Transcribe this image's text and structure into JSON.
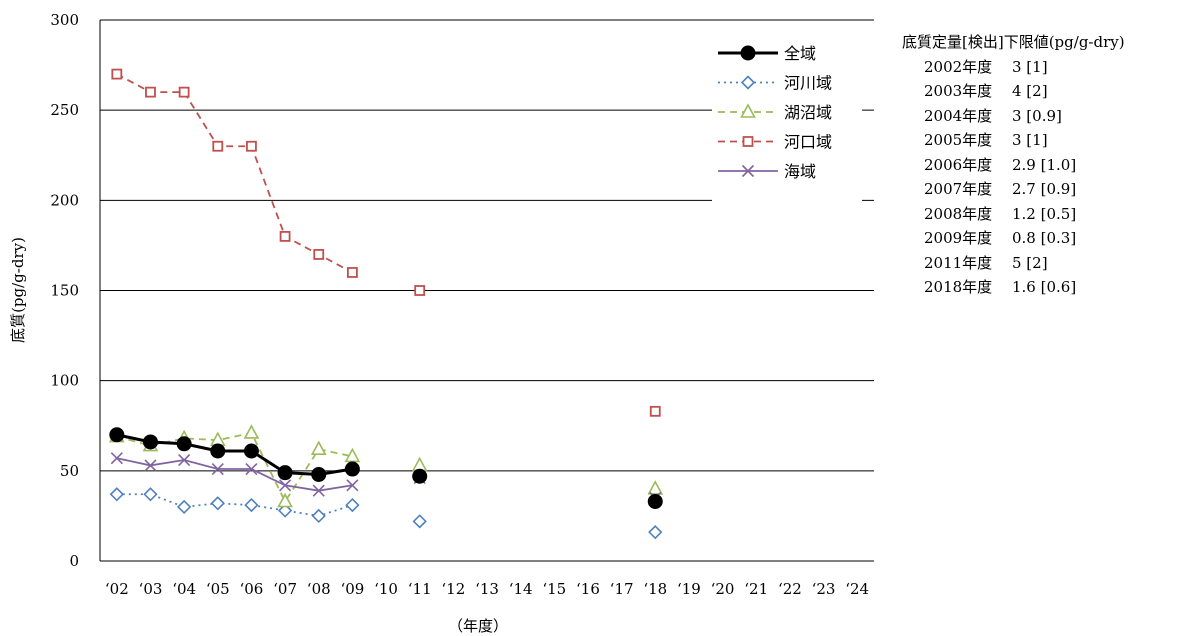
{
  "chart_data": {
    "type": "line",
    "ylabel": "底質(pg/g-dry)",
    "xlabel": "（年度）",
    "ylim": [
      0,
      300
    ],
    "yticks": [
      0,
      50,
      100,
      150,
      200,
      250,
      300
    ],
    "grid": true,
    "legend_position": "top-right",
    "categories": [
      "‘02",
      "‘03",
      "‘04",
      "‘05",
      "‘06",
      "‘07",
      "‘08",
      "‘09",
      "‘10",
      "‘11",
      "‘12",
      "‘13",
      "‘14",
      "‘15",
      "‘16",
      "‘17",
      "‘18",
      "‘19",
      "‘20",
      "‘21",
      "‘22",
      "‘23",
      "‘24"
    ],
    "series": [
      {
        "name": "全域",
        "color": "#000000",
        "marker": "circle",
        "line": "solid",
        "values": [
          70,
          66,
          65,
          61,
          61,
          49,
          48,
          51,
          null,
          47,
          null,
          null,
          null,
          null,
          null,
          null,
          33,
          null,
          null,
          null,
          null,
          null,
          null
        ]
      },
      {
        "name": "河川域",
        "color": "#4f81bd",
        "marker": "diamond",
        "line": "dotted",
        "values": [
          37,
          37,
          30,
          32,
          31,
          28,
          25,
          31,
          null,
          22,
          null,
          null,
          null,
          null,
          null,
          null,
          16,
          null,
          null,
          null,
          null,
          null,
          null
        ]
      },
      {
        "name": "湖沼域",
        "color": "#9bbb59",
        "marker": "triangle",
        "line": "dashed",
        "values": [
          69,
          64,
          68,
          67,
          71,
          33,
          62,
          58,
          null,
          53,
          null,
          null,
          null,
          null,
          null,
          null,
          40,
          null,
          null,
          null,
          null,
          null,
          null
        ]
      },
      {
        "name": "河口域",
        "color": "#c0504d",
        "marker": "square",
        "line": "dashed",
        "values": [
          270,
          260,
          260,
          230,
          230,
          180,
          170,
          160,
          null,
          150,
          null,
          null,
          null,
          null,
          null,
          null,
          83,
          null,
          null,
          null,
          null,
          null,
          null
        ]
      },
      {
        "name": "海域",
        "color": "#8064a2",
        "marker": "x",
        "line": "solid",
        "values": [
          57,
          53,
          56,
          51,
          51,
          42,
          39,
          42,
          null,
          46,
          null,
          null,
          null,
          null,
          null,
          null,
          35,
          null,
          null,
          null,
          null,
          null,
          null
        ]
      }
    ]
  },
  "notes": {
    "title": "底質定量[検出]下限値(pg/g-dry)",
    "rows": [
      {
        "year": "2002年度",
        "value": "3 [1]"
      },
      {
        "year": "2003年度",
        "value": "4 [2]"
      },
      {
        "year": "2004年度",
        "value": "3 [0.9]"
      },
      {
        "year": "2005年度",
        "value": "3 [1]"
      },
      {
        "year": "2006年度",
        "value": "2.9 [1.0]"
      },
      {
        "year": "2007年度",
        "value": "2.7 [0.9]"
      },
      {
        "year": "2008年度",
        "value": "1.2 [0.5]"
      },
      {
        "year": "2009年度",
        "value": "0.8 [0.3]"
      },
      {
        "year": "2011年度",
        "value": "5 [2]"
      },
      {
        "year": "2018年度",
        "value": "1.6 [0.6]"
      }
    ]
  }
}
